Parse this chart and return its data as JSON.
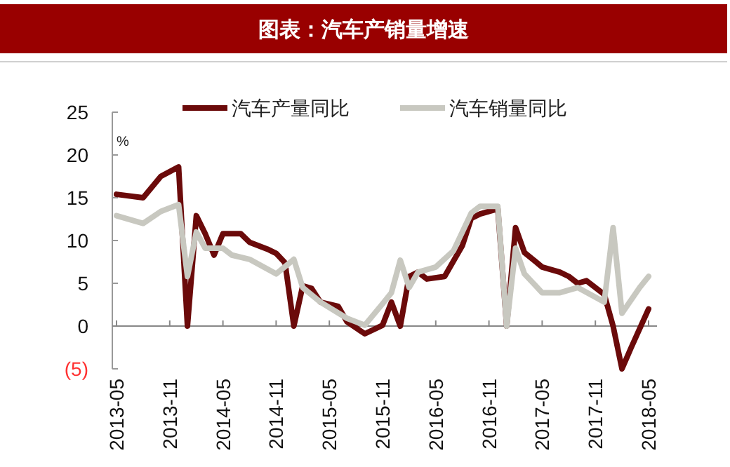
{
  "chart_data": {
    "type": "line",
    "title": "图表：汽车产销量增速",
    "ylabel": "%",
    "xlim": [
      "2013-05",
      "2018-05"
    ],
    "xticks": [
      "2013-05",
      "2013-11",
      "2014-05",
      "2014-11",
      "2015-05",
      "2015-11",
      "2016-05",
      "2016-11",
      "2017-05",
      "2017-11",
      "2018-05"
    ],
    "ylim": [
      -5,
      25
    ],
    "yticks": [
      {
        "value": -5,
        "label": "(5)"
      },
      0,
      5,
      10,
      15,
      20,
      25
    ],
    "legend": "top",
    "line_style": "solid",
    "marker": "none",
    "series": [
      {
        "name": "汽车产量同比",
        "color": "#6b0a0a",
        "x": [
          "2013-05",
          "2013-08",
          "2013-10",
          "2013-12",
          "2014-01",
          "2014-02",
          "2014-03",
          "2014-04",
          "2014-05",
          "2014-07",
          "2014-08",
          "2014-10",
          "2014-11",
          "2014-12",
          "2015-01",
          "2015-02",
          "2015-03",
          "2015-04",
          "2015-06",
          "2015-07",
          "2015-09",
          "2015-11",
          "2015-12",
          "2016-01",
          "2016-02",
          "2016-03",
          "2016-04",
          "2016-06",
          "2016-08",
          "2016-09",
          "2016-10",
          "2016-12",
          "2017-01",
          "2017-02",
          "2017-03",
          "2017-05",
          "2017-07",
          "2017-08",
          "2017-09",
          "2017-10",
          "2017-12",
          "2018-01",
          "2018-02",
          "2018-03",
          "2018-04",
          "2018-05"
        ],
        "values": [
          15.4,
          15.0,
          17.5,
          18.6,
          0,
          12.9,
          10.8,
          8.3,
          10.8,
          10.8,
          9.8,
          9.0,
          8.5,
          7.4,
          0,
          4.7,
          4.4,
          2.8,
          2.3,
          0.5,
          -0.9,
          0.1,
          2.8,
          0,
          5.8,
          6.3,
          5.5,
          5.8,
          9.4,
          12.6,
          13.1,
          13.7,
          0,
          11.5,
          8.6,
          6.9,
          6.3,
          5.8,
          5.0,
          5.3,
          3.7,
          0,
          -5.0,
          -2.6,
          -0.3,
          2.0
        ]
      },
      {
        "name": "汽车销量同比",
        "color": "#c8c8c0",
        "x": [
          "2013-05",
          "2013-08",
          "2013-10",
          "2013-12",
          "2014-01",
          "2014-02",
          "2014-03",
          "2014-05",
          "2014-06",
          "2014-08",
          "2014-11",
          "2015-01",
          "2015-02",
          "2015-04",
          "2015-07",
          "2015-09",
          "2015-11",
          "2015-12",
          "2016-01",
          "2016-02",
          "2016-03",
          "2016-05",
          "2016-07",
          "2016-09",
          "2016-10",
          "2016-12",
          "2017-01",
          "2017-02",
          "2017-03",
          "2017-05",
          "2017-07",
          "2017-09",
          "2017-12",
          "2018-01",
          "2018-02",
          "2018-04",
          "2018-05"
        ],
        "values": [
          12.9,
          12.0,
          13.4,
          14.2,
          5.8,
          11.0,
          9.1,
          9.1,
          8.3,
          7.8,
          6.1,
          7.8,
          4.5,
          2.8,
          0.9,
          0.1,
          2.6,
          3.9,
          7.7,
          4.5,
          6.3,
          6.9,
          8.8,
          13.2,
          14.0,
          14.0,
          0,
          9.1,
          6.1,
          3.9,
          3.9,
          4.5,
          2.8,
          11.5,
          1.5,
          4.5,
          5.8
        ]
      }
    ]
  }
}
